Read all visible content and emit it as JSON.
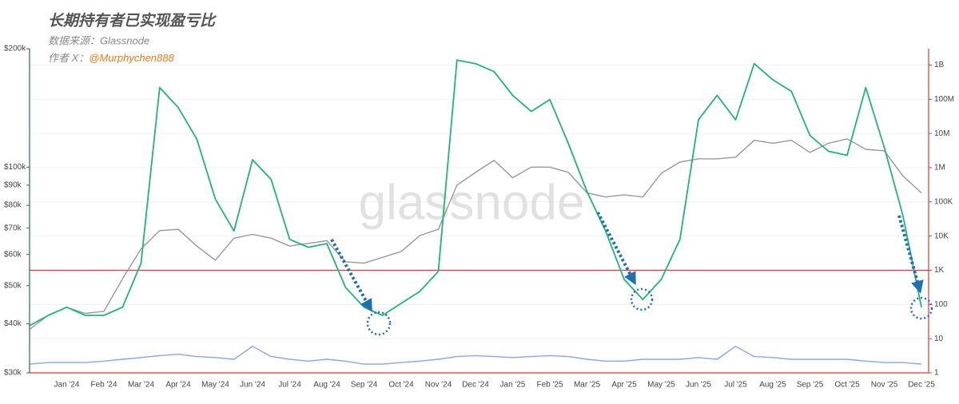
{
  "chart_data": {
    "type": "line",
    "title": "长期持有者已实现盈亏比",
    "subtitle": "数据来源：Glassnode",
    "author_label": "作者 X：",
    "author_handle": "@Murphychen888",
    "watermark": "glassnode",
    "categories": [
      null,
      null,
      "Jan '24",
      null,
      "Feb '24",
      null,
      "Mar '24",
      null,
      "Apr '24",
      null,
      "May '24",
      null,
      "Jun '24",
      null,
      "Jul '24",
      null,
      "Aug '24",
      null,
      "Sep '24",
      null,
      "Oct '24",
      null,
      "Nov '24",
      null,
      "Dec '24",
      null,
      "Jan '25",
      null,
      "Feb '25",
      null,
      "Mar '25",
      null,
      "Apr '25",
      null,
      "May '25",
      null,
      "Jun '25",
      null,
      "Jul '25",
      null,
      "Aug '25",
      null,
      "Sep '25",
      null,
      "Oct '25",
      null,
      "Nov '25",
      null,
      "Dec '25"
    ],
    "series": [
      {
        "color": "#999999",
        "axis": "y",
        "values": [
          38700,
          42000,
          44000,
          42500,
          43000,
          52000,
          62000,
          69000,
          69500,
          63000,
          58000,
          66000,
          67500,
          66000,
          63000,
          64000,
          65000,
          57500,
          57000,
          59000,
          61000,
          67000,
          69500,
          90000,
          97000,
          104000,
          94000,
          100000,
          100000,
          97000,
          86000,
          84000,
          85000,
          84000,
          96500,
          103000,
          105000,
          105000,
          106000,
          117000,
          115000,
          117000,
          109000,
          115000,
          118000,
          111000,
          110000,
          95000,
          86000
        ]
      },
      {
        "color": "#1fb579",
        "axis": "y2",
        "values": [
          24,
          48,
          83,
          48,
          48,
          83,
          1600,
          220000000,
          57000000,
          6800000,
          120000,
          14000,
          1700000,
          450000,
          8000,
          4700,
          6000,
          316,
          83,
          48,
          108,
          240,
          930,
          1400000000,
          1100000000,
          640000000,
          130000000,
          44000000,
          98000000,
          5000000,
          200000,
          14000,
          540,
          140,
          540,
          8000,
          25000000,
          130000000,
          25000000,
          1100000000,
          370000000,
          170000000,
          8700000,
          3000000,
          2300000,
          220000000,
          3900000,
          40000,
          83
        ]
      },
      {
        "color": "#8aa6e8",
        "axis": "y2",
        "values": [
          1.8,
          2,
          2,
          2,
          2.2,
          2.5,
          2.8,
          3.2,
          3.5,
          3,
          2.8,
          2.5,
          6,
          3,
          2.5,
          2.2,
          2.5,
          2.2,
          1.8,
          1.8,
          2,
          2.2,
          2.5,
          3,
          3.2,
          3,
          2.8,
          3,
          3.2,
          3,
          2.5,
          2.2,
          2.2,
          2.5,
          2.5,
          2.5,
          2.8,
          2.5,
          6,
          3,
          2.8,
          2.5,
          2.5,
          2.5,
          2.5,
          2.2,
          2,
          2,
          1.8
        ]
      }
    ],
    "ylim": [
      30000,
      200000
    ],
    "ylog": true,
    "yticks": [
      {
        "value": 30000,
        "label": "$30k"
      },
      {
        "value": 40000,
        "label": "$40k"
      },
      {
        "value": 50000,
        "label": "$50k"
      },
      {
        "value": 60000,
        "label": "$60k"
      },
      {
        "value": 70000,
        "label": "$70k"
      },
      {
        "value": 80000,
        "label": "$80k"
      },
      {
        "value": 90000,
        "label": "$90k"
      },
      {
        "value": 100000,
        "label": "$100k"
      },
      {
        "value": 200000,
        "label": "$200k"
      }
    ],
    "y2lim": [
      1,
      3000000000
    ],
    "y2log": true,
    "y2ticks": [
      1,
      10,
      100,
      {
        "value": 1000,
        "label": "1K"
      },
      {
        "value": 10000,
        "label": "10K"
      },
      {
        "value": 100000,
        "label": "100K"
      },
      {
        "value": 1000000,
        "label": "1M"
      },
      {
        "value": 10000000,
        "label": "10M"
      },
      {
        "value": 100000000,
        "label": "100M"
      },
      {
        "value": 1000000000,
        "label": "1B"
      }
    ],
    "grid": true,
    "reference_line": {
      "axis": "y2",
      "value": 1000,
      "color": "#d9393c"
    }
  }
}
